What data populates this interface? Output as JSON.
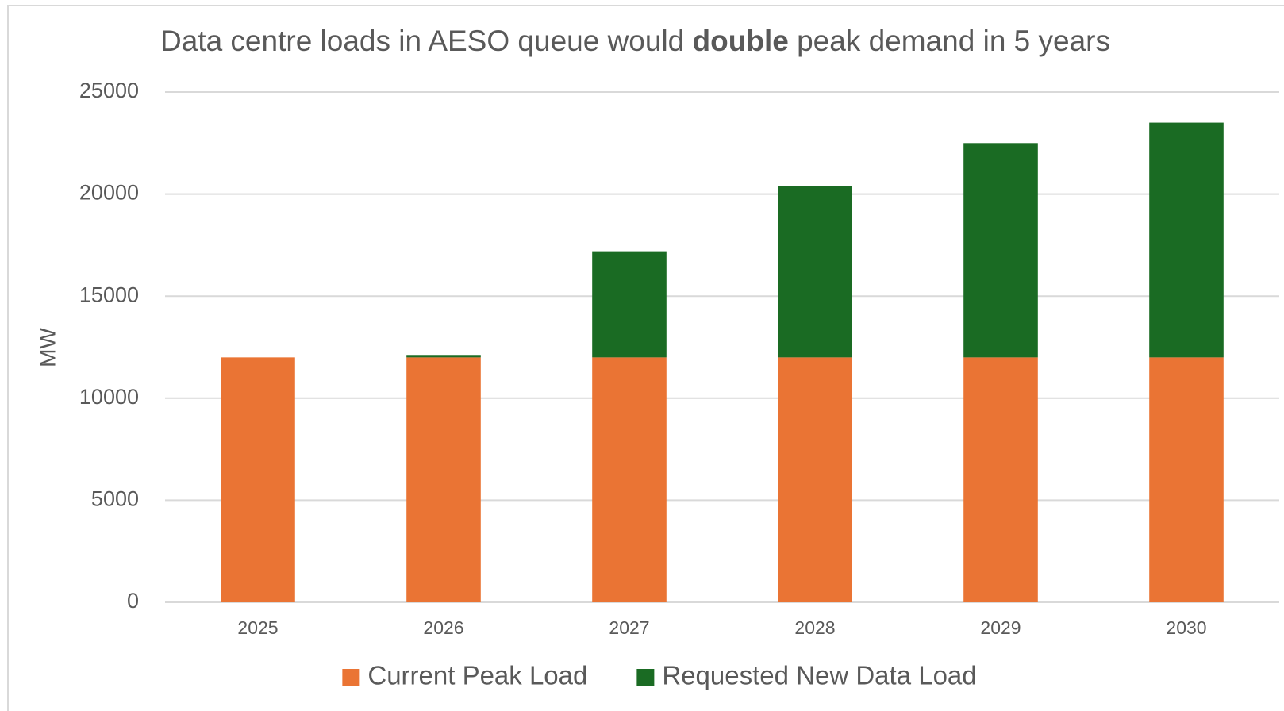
{
  "chart_data": {
    "type": "bar",
    "stacked": true,
    "title": [
      "Data centre loads in AESO queue would ",
      "double",
      " peak demand in 5 years"
    ],
    "ylabel": "MW",
    "categories": [
      "2025",
      "2026",
      "2027",
      "2028",
      "2029",
      "2030"
    ],
    "series": [
      {
        "name": "Current Peak Load",
        "color": "#ea7434",
        "values": [
          12000,
          12000,
          12000,
          12000,
          12000,
          12000
        ]
      },
      {
        "name": "Requested New Data Load",
        "color": "#1a6b23",
        "values": [
          0,
          120,
          5200,
          8400,
          10500,
          11500
        ]
      }
    ],
    "ylim": [
      0,
      25000
    ],
    "yticks": [
      0,
      5000,
      10000,
      15000,
      20000,
      25000
    ],
    "grid": true,
    "legend": "bottom"
  }
}
